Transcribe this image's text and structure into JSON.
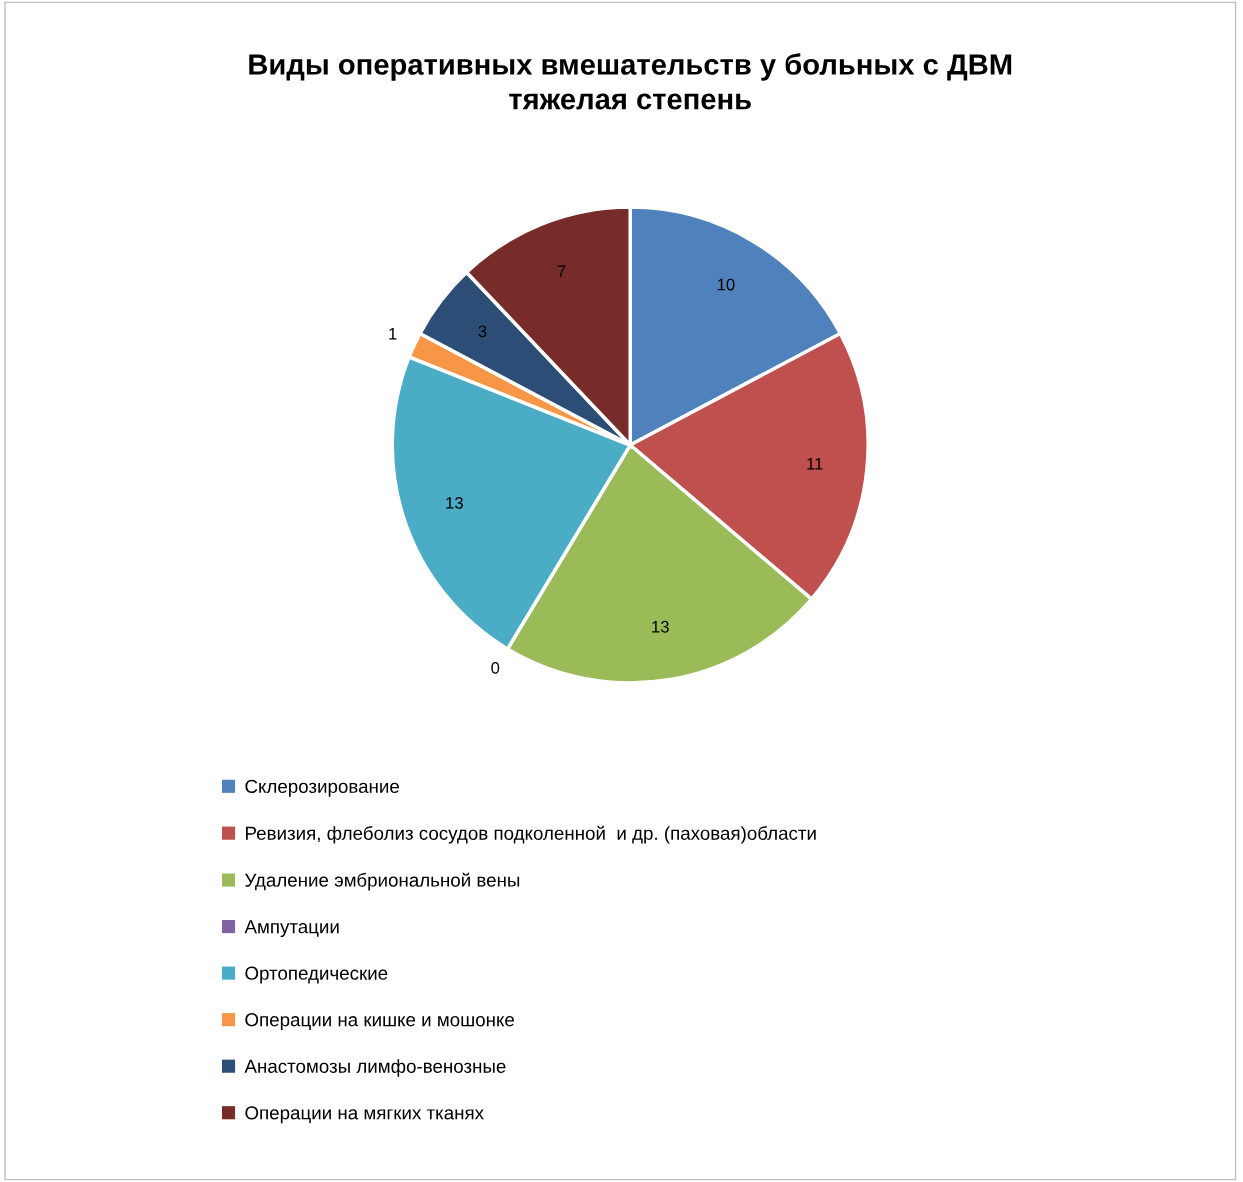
{
  "chart_data": {
    "type": "pie",
    "title": "Виды оперативных вмешательств у больных с ДВМ\nтяжелая степень",
    "categories": [
      "Склерозирование",
      "Ревизия, флеболиз сосудов подколенной  и др. (паховая)области",
      "Удаление эмбриональной вены",
      "Ампутации",
      "Ортопедические",
      "Операции на кишке и мошонке",
      "Анастомозы лимфо-венозные",
      "Операции на мягких тканях"
    ],
    "values": [
      10,
      11,
      13,
      0,
      13,
      1,
      3,
      7
    ],
    "colors": [
      "#4f81bd",
      "#c0504d",
      "#9bbb59",
      "#8064a2",
      "#4bacc6",
      "#f79646",
      "#2c4d75",
      "#772c2a"
    ],
    "value_labels": [
      "10",
      "11",
      "13",
      "0",
      "13",
      "1",
      "3",
      "7"
    ],
    "legend": "bottom"
  }
}
